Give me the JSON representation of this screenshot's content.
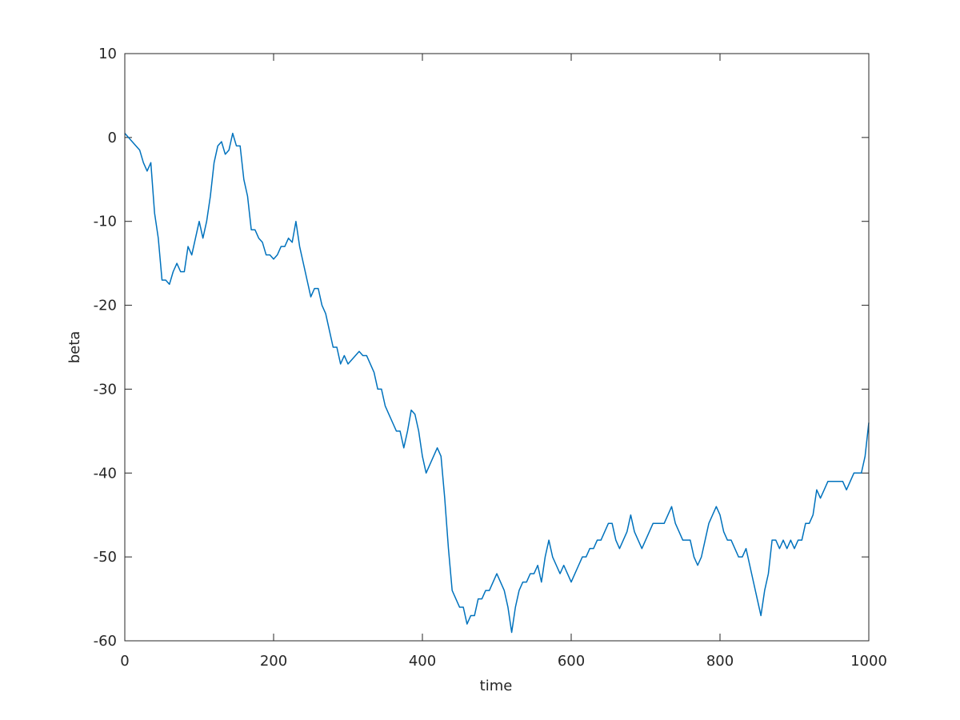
{
  "chart_data": {
    "type": "line",
    "x_label": "time",
    "y_label": "beta",
    "xlim": [
      0,
      1000
    ],
    "ylim": [
      -60,
      10
    ],
    "xticks": [
      0,
      200,
      400,
      600,
      800,
      1000
    ],
    "yticks": [
      -60,
      -50,
      -40,
      -30,
      -20,
      -10,
      0,
      10
    ],
    "grid": false,
    "x": [
      0,
      5,
      10,
      15,
      20,
      25,
      30,
      35,
      40,
      45,
      50,
      55,
      60,
      65,
      70,
      75,
      80,
      85,
      90,
      95,
      100,
      105,
      110,
      115,
      120,
      125,
      130,
      135,
      140,
      145,
      150,
      155,
      160,
      165,
      170,
      175,
      180,
      185,
      190,
      195,
      200,
      205,
      210,
      215,
      220,
      225,
      230,
      235,
      240,
      245,
      250,
      255,
      260,
      265,
      270,
      275,
      280,
      285,
      290,
      295,
      300,
      305,
      310,
      315,
      320,
      325,
      330,
      335,
      340,
      345,
      350,
      355,
      360,
      365,
      370,
      375,
      380,
      385,
      390,
      395,
      400,
      405,
      410,
      415,
      420,
      425,
      430,
      435,
      440,
      445,
      450,
      455,
      460,
      465,
      470,
      475,
      480,
      485,
      490,
      495,
      500,
      505,
      510,
      515,
      520,
      525,
      530,
      535,
      540,
      545,
      550,
      555,
      560,
      565,
      570,
      575,
      580,
      585,
      590,
      595,
      600,
      605,
      610,
      615,
      620,
      625,
      630,
      635,
      640,
      645,
      650,
      655,
      660,
      665,
      670,
      675,
      680,
      685,
      690,
      695,
      700,
      705,
      710,
      715,
      720,
      725,
      730,
      735,
      740,
      745,
      750,
      755,
      760,
      765,
      770,
      775,
      780,
      785,
      790,
      795,
      800,
      805,
      810,
      815,
      820,
      825,
      830,
      835,
      840,
      845,
      850,
      855,
      860,
      865,
      870,
      875,
      880,
      885,
      890,
      895,
      900,
      905,
      910,
      915,
      920,
      925,
      930,
      935,
      940,
      945,
      950,
      955,
      960,
      965,
      970,
      975,
      980,
      985,
      990,
      995,
      1000
    ],
    "series": [
      {
        "color": "#0072bd",
        "values": [
          0.5,
          0,
          -0.5,
          -1,
          -1.5,
          -3,
          -4,
          -3,
          -9,
          -12,
          -17,
          -17,
          -17.5,
          -16,
          -15,
          -16,
          -16,
          -13,
          -14,
          -12,
          -10,
          -12,
          -10,
          -7,
          -3,
          -1,
          -0.5,
          -2,
          -1.5,
          0.5,
          -1,
          -1,
          -5,
          -7,
          -11,
          -11,
          -12,
          -12.5,
          -14,
          -14,
          -14.5,
          -14,
          -13,
          -13,
          -12,
          -12.5,
          -10,
          -13,
          -15,
          -17,
          -19,
          -18,
          -18,
          -20,
          -21,
          -23,
          -25,
          -25,
          -27,
          -26,
          -27,
          -26.5,
          -26,
          -25.5,
          -26,
          -26,
          -27,
          -28,
          -30,
          -30,
          -32,
          -33,
          -34,
          -35,
          -35,
          -37,
          -35,
          -32.5,
          -33,
          -35,
          -38,
          -40,
          -39,
          -38,
          -37,
          -38,
          -43,
          -49,
          -54,
          -55,
          -56,
          -56,
          -58,
          -57,
          -57,
          -55,
          -55,
          -54,
          -54,
          -53,
          -52,
          -53,
          -54,
          -56,
          -59,
          -56,
          -54,
          -53,
          -53,
          -52,
          -52,
          -51,
          -53,
          -50,
          -48,
          -50,
          -51,
          -52,
          -51,
          -52,
          -53,
          -52,
          -51,
          -50,
          -50,
          -49,
          -49,
          -48,
          -48,
          -47,
          -46,
          -46,
          -48,
          -49,
          -48,
          -47,
          -45,
          -47,
          -48,
          -49,
          -48,
          -47,
          -46,
          -46,
          -46,
          -46,
          -45,
          -44,
          -46,
          -47,
          -48,
          -48,
          -48,
          -50,
          -51,
          -50,
          -48,
          -46,
          -45,
          -44,
          -45,
          -47,
          -48,
          -48,
          -49,
          -50,
          -50,
          -49,
          -51,
          -53,
          -55,
          -57,
          -54,
          -52,
          -48,
          -48,
          -49,
          -48,
          -49,
          -48,
          -49,
          -48,
          -48,
          -46,
          -46,
          -45,
          -42,
          -43,
          -42,
          -41,
          -41,
          -41,
          -41,
          -41,
          -42,
          -41,
          -40,
          -40,
          -40,
          -38,
          -34
        ]
      }
    ]
  }
}
